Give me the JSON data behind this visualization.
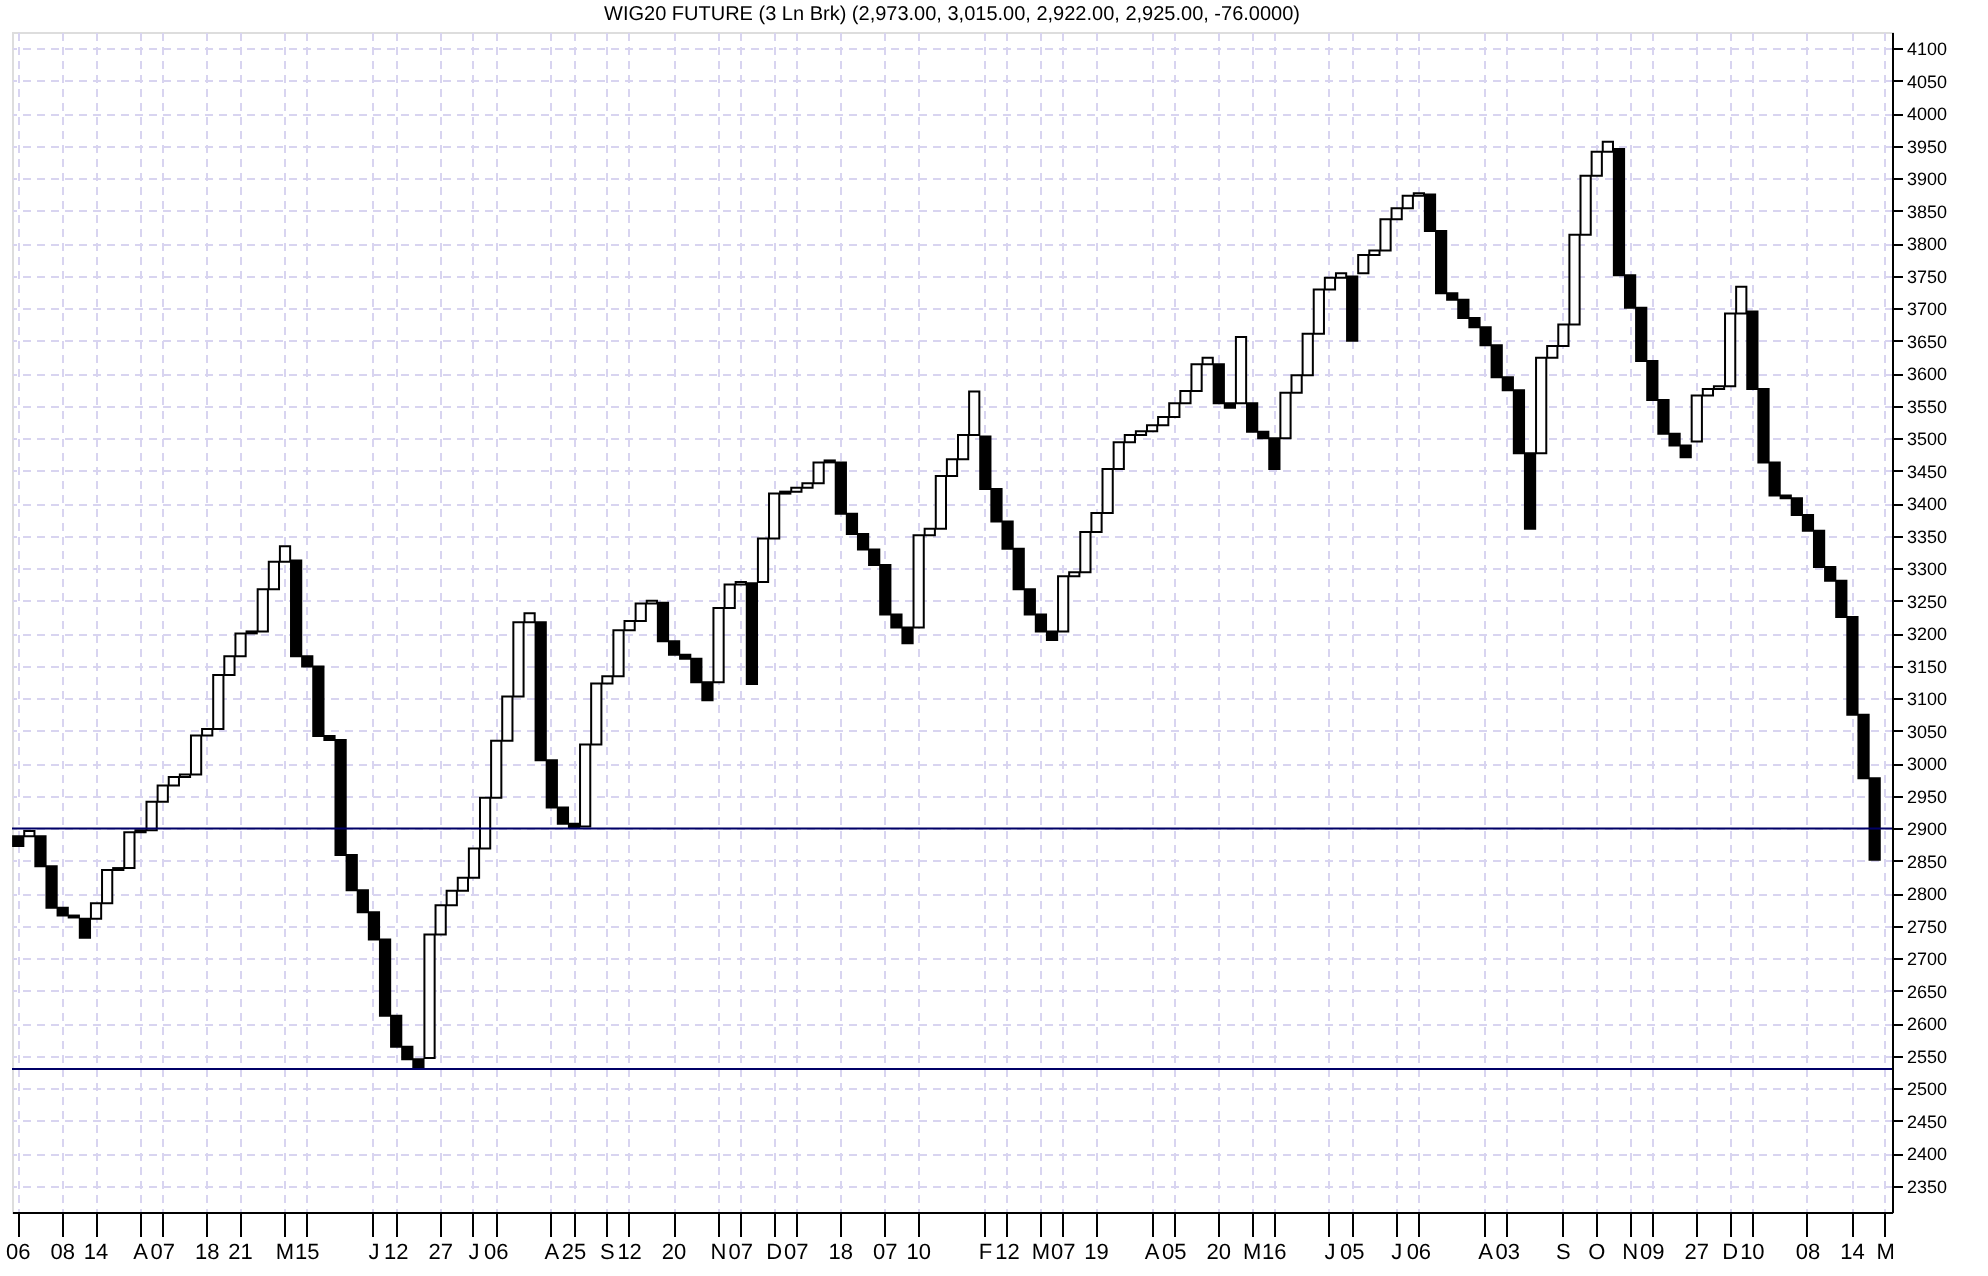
{
  "chart_data": {
    "type": "bar",
    "title": "WIG20 FUTURE (3 Ln Brk)  (2,973.00, 3,015.00, 2,922.00, 2,925.00, -76.0000)",
    "categories": [
      "06",
      null,
      null,
      null,
      "08",
      null,
      null,
      "14",
      null,
      null,
      null,
      "A",
      null,
      "07",
      null,
      null,
      null,
      "18",
      null,
      null,
      "21",
      null,
      null,
      null,
      "M",
      null,
      "15",
      null,
      null,
      null,
      null,
      null,
      "J",
      null,
      "12",
      null,
      null,
      null,
      "27",
      null,
      null,
      "J",
      null,
      "06",
      null,
      null,
      null,
      null,
      "A",
      null,
      "25",
      null,
      null,
      "S",
      null,
      "12",
      null,
      null,
      null,
      "20",
      null,
      null,
      null,
      "N",
      null,
      "07",
      null,
      null,
      "D",
      null,
      "07",
      null,
      null,
      null,
      "18",
      null,
      null,
      null,
      "07",
      null,
      null,
      "10",
      null,
      null,
      null,
      null,
      null,
      "F",
      null,
      "12",
      null,
      null,
      "M",
      null,
      "07",
      null,
      null,
      "19",
      null,
      null,
      null,
      null,
      "A",
      null,
      "05",
      null,
      null,
      null,
      "20",
      null,
      null,
      "M",
      null,
      "16",
      null,
      null,
      null,
      null,
      "J",
      null,
      "05",
      null,
      null,
      null,
      "J",
      null,
      "06",
      null,
      null,
      null,
      null,
      null,
      "A",
      null,
      "03",
      null,
      null,
      null,
      null,
      "S",
      null,
      null,
      "O",
      null,
      null,
      "N",
      null,
      "09",
      null,
      null,
      null,
      "27",
      null,
      null,
      "D",
      null,
      "10",
      null,
      null,
      null,
      null,
      "08",
      null,
      null,
      null,
      "14",
      null,
      null,
      "M"
    ],
    "base": [
      2888,
      2888,
      2888,
      2842,
      2778,
      2766,
      2761,
      2761,
      2785,
      2836,
      2839,
      2894,
      2897,
      2941,
      2966,
      2979,
      2983,
      3043,
      3053,
      3136,
      3165,
      3200,
      3203,
      3268,
      3310,
      3312,
      3165,
      3149,
      3042,
      3036,
      2859,
      2805,
      2771,
      2729,
      2612,
      2564,
      2545,
      2547,
      2737,
      2782,
      2804,
      2824,
      2869,
      2947,
      3035,
      3103,
      3217,
      3217,
      3005,
      2932,
      2907,
      2903,
      3029,
      3123,
      3134,
      3205,
      3219,
      3246,
      3247,
      3188,
      3167,
      3161,
      3125,
      3125,
      3239,
      3275,
      3277,
      3279,
      3346,
      3415,
      3418,
      3424,
      3431,
      3463,
      3463,
      3384,
      3353,
      3329,
      3305,
      3229,
      3209,
      3209,
      3351,
      3361,
      3442,
      3468,
      3505,
      3503,
      3422,
      3372,
      3330,
      3268,
      3229,
      3203,
      3203,
      3288,
      3294,
      3356,
      3385,
      3453,
      3494,
      3505,
      3511,
      3520,
      3533,
      3554,
      3573,
      3614,
      3614,
      3554,
      3554,
      3554,
      3510,
      3500,
      3500,
      3570,
      3597,
      3661,
      3729,
      3747,
      3749,
      3754,
      3782,
      3789,
      3837,
      3854,
      3873,
      3875,
      3819,
      3723,
      3713,
      3685,
      3671,
      3643,
      3594,
      3574,
      3477,
      3477,
      3624,
      3642,
      3675,
      3813,
      3904,
      3941,
      3945,
      3751,
      3701,
      3619,
      3559,
      3507,
      3489,
      3495,
      3566,
      3576,
      3580,
      3692,
      3695,
      3576,
      3463,
      3412,
      3408,
      3382,
      3358,
      3302,
      3281,
      3225,
      3075,
      2977,
      null
    ],
    "values": [
      -15,
      8,
      -46,
      -64,
      -12,
      -3,
      -29,
      24,
      51,
      3,
      55,
      3,
      44,
      25,
      13,
      4,
      60,
      10,
      83,
      29,
      35,
      3,
      65,
      42,
      24,
      -147,
      -16,
      -107,
      -6,
      -177,
      -54,
      -34,
      -42,
      -117,
      -48,
      -19,
      -13,
      190,
      45,
      22,
      20,
      45,
      78,
      88,
      68,
      114,
      14,
      -212,
      -73,
      -25,
      -5,
      126,
      94,
      11,
      71,
      14,
      27,
      4,
      -59,
      -21,
      -6,
      -36,
      -28,
      114,
      36,
      4,
      -155,
      67,
      69,
      3,
      6,
      7,
      32,
      3,
      -79,
      -31,
      -24,
      -24,
      -76,
      -20,
      -24,
      142,
      10,
      81,
      26,
      37,
      67,
      -81,
      -50,
      -42,
      -62,
      -39,
      -26,
      -13,
      85,
      6,
      62,
      29,
      68,
      41,
      11,
      6,
      9,
      13,
      21,
      19,
      41,
      10,
      -60,
      -7,
      102,
      -44,
      -10,
      -47,
      70,
      27,
      64,
      68,
      18,
      7,
      -99,
      28,
      7,
      48,
      17,
      19,
      4,
      -56,
      -96,
      -10,
      -28,
      -14,
      -28,
      -49,
      -20,
      -97,
      -116,
      147,
      18,
      33,
      138,
      91,
      37,
      15,
      -194,
      -50,
      -82,
      -60,
      -52,
      -18,
      -18,
      71,
      10,
      4,
      112,
      41,
      -119,
      -113,
      -51,
      -4,
      -26,
      -24,
      -56,
      -21,
      -56,
      -150,
      -98,
      -125,
      null
    ],
    "colors": [
      "#000000",
      "#ffffff",
      "#000000",
      "#000000",
      "#000000",
      "#000000",
      "#000000",
      "#ffffff",
      "#ffffff",
      "#ffffff",
      "#ffffff",
      "#ffffff",
      "#ffffff",
      "#ffffff",
      "#ffffff",
      "#ffffff",
      "#ffffff",
      "#ffffff",
      "#ffffff",
      "#ffffff",
      "#ffffff",
      "#ffffff",
      "#ffffff",
      "#ffffff",
      "#ffffff",
      "#000000",
      "#000000",
      "#000000",
      "#000000",
      "#000000",
      "#000000",
      "#000000",
      "#000000",
      "#000000",
      "#000000",
      "#000000",
      "#000000",
      "#ffffff",
      "#ffffff",
      "#ffffff",
      "#ffffff",
      "#ffffff",
      "#ffffff",
      "#ffffff",
      "#ffffff",
      "#ffffff",
      "#ffffff",
      "#000000",
      "#000000",
      "#000000",
      "#000000",
      "#ffffff",
      "#ffffff",
      "#ffffff",
      "#ffffff",
      "#ffffff",
      "#ffffff",
      "#ffffff",
      "#000000",
      "#000000",
      "#000000",
      "#000000",
      "#000000",
      "#ffffff",
      "#ffffff",
      "#ffffff",
      "#000000",
      "#ffffff",
      "#ffffff",
      "#ffffff",
      "#ffffff",
      "#ffffff",
      "#ffffff",
      "#ffffff",
      "#000000",
      "#000000",
      "#000000",
      "#000000",
      "#000000",
      "#000000",
      "#000000",
      "#ffffff",
      "#ffffff",
      "#ffffff",
      "#ffffff",
      "#ffffff",
      "#ffffff",
      "#000000",
      "#000000",
      "#000000",
      "#000000",
      "#000000",
      "#000000",
      "#000000",
      "#ffffff",
      "#ffffff",
      "#ffffff",
      "#ffffff",
      "#ffffff",
      "#ffffff",
      "#ffffff",
      "#ffffff",
      "#ffffff",
      "#ffffff",
      "#ffffff",
      "#ffffff",
      "#ffffff",
      "#ffffff",
      "#000000",
      "#000000",
      "#ffffff",
      "#000000",
      "#000000",
      "#000000",
      "#ffffff",
      "#ffffff",
      "#ffffff",
      "#ffffff",
      "#ffffff",
      "#ffffff",
      "#000000",
      "#ffffff",
      "#ffffff",
      "#ffffff",
      "#ffffff",
      "#ffffff",
      "#ffffff",
      "#000000",
      "#000000",
      "#000000",
      "#000000",
      "#000000",
      "#000000",
      "#000000",
      "#000000",
      "#000000",
      "#000000",
      "#ffffff",
      "#ffffff",
      "#ffffff",
      "#ffffff",
      "#ffffff",
      "#ffffff",
      "#ffffff",
      "#000000",
      "#000000",
      "#000000",
      "#000000",
      "#000000",
      "#000000",
      "#000000",
      "#ffffff",
      "#ffffff",
      "#ffffff",
      "#ffffff",
      "#ffffff",
      "#000000",
      "#000000",
      "#000000",
      "#000000",
      "#000000",
      "#000000",
      "#000000",
      "#000000",
      "#000000",
      "#000000",
      "#000000",
      "#000000",
      null
    ],
    "ylim": [
      2310,
      4125
    ],
    "yticks": [
      2350,
      2400,
      2450,
      2500,
      2550,
      2600,
      2650,
      2700,
      2750,
      2800,
      2850,
      2900,
      2950,
      3000,
      3050,
      3100,
      3150,
      3200,
      3250,
      3300,
      3350,
      3400,
      3450,
      3500,
      3550,
      3600,
      3650,
      3700,
      3750,
      3800,
      3850,
      3900,
      3950,
      4000,
      4050,
      4100
    ],
    "ref_lines": [
      {
        "axis": "y",
        "value": 2900,
        "color": "#000066"
      },
      {
        "axis": "y",
        "value": 2530,
        "color": "#000066"
      }
    ],
    "grid": true
  }
}
